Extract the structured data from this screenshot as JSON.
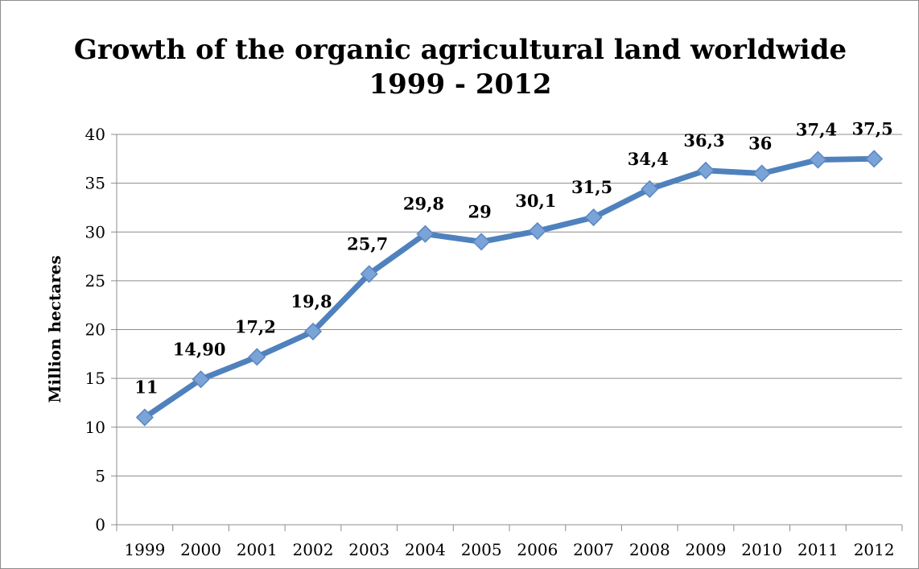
{
  "chart_data": {
    "type": "line",
    "title": "Growth of the organic agricultural land worldwide",
    "subtitle": "1999 - 2012",
    "xlabel": "",
    "ylabel": "Million hectares",
    "ylim": [
      0,
      40
    ],
    "y_ticks": [
      "0",
      "5",
      "10",
      "15",
      "20",
      "25",
      "30",
      "35",
      "40"
    ],
    "categories": [
      "1999",
      "2000",
      "2001",
      "2002",
      "2003",
      "2004",
      "2005",
      "2006",
      "2007",
      "2008",
      "2009",
      "2010",
      "2011",
      "2012"
    ],
    "values": [
      11,
      14.9,
      17.2,
      19.8,
      25.7,
      29.8,
      29,
      30.1,
      31.5,
      34.4,
      36.3,
      36,
      37.4,
      37.5
    ],
    "data_labels": [
      "11",
      "14,90",
      "17,2",
      "19,8",
      "25,7",
      "29,8",
      "29",
      "30,1",
      "31,5",
      "34,4",
      "36,3",
      "36",
      "37,4",
      "37,5"
    ],
    "grid": true,
    "legend": "none",
    "colors": {
      "line": "#4f81bd",
      "marker_fill": "#7aa3d8",
      "marker_stroke": "#5b86c0",
      "grid": "#8c8c8c"
    }
  }
}
